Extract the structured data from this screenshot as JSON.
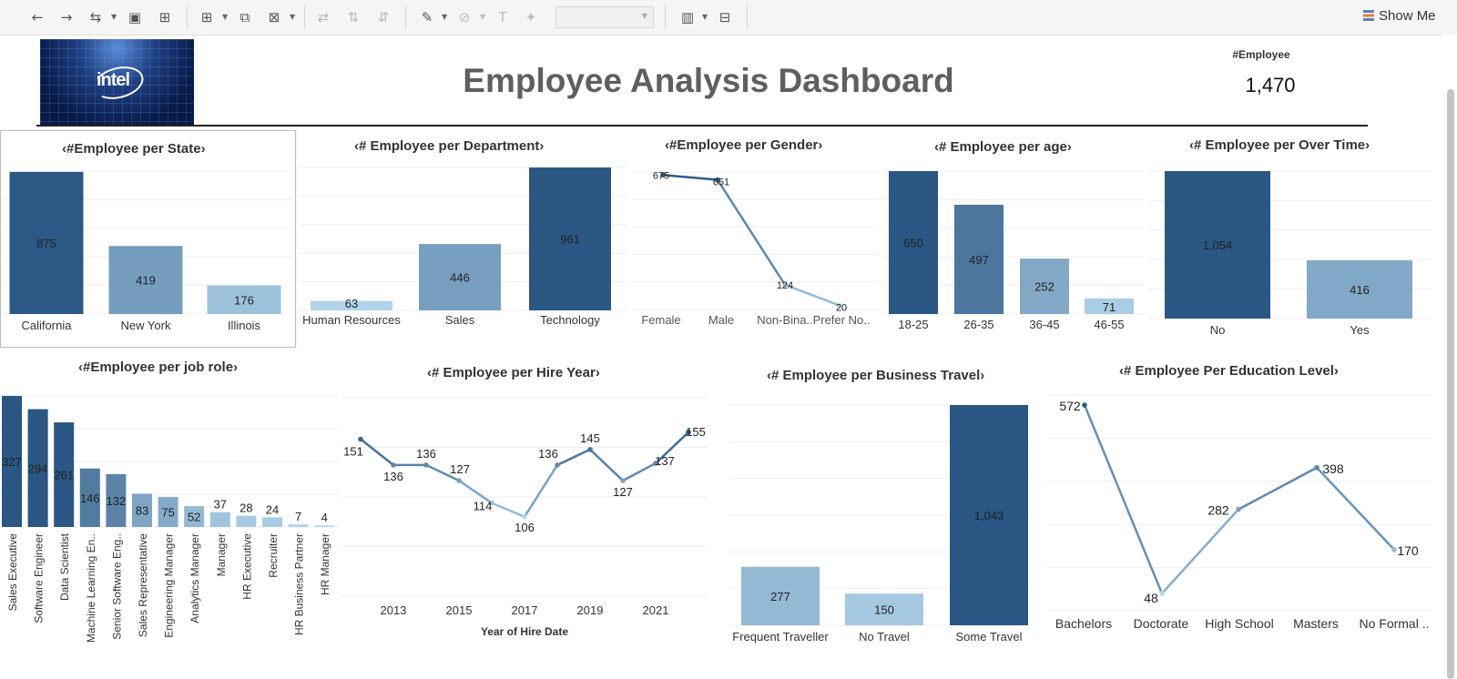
{
  "toolbar": {
    "items": [
      {
        "name": "undo-icon",
        "glyph": "←"
      },
      {
        "name": "redo-icon",
        "glyph": "→"
      },
      {
        "name": "replay-icon",
        "glyph": "⇆"
      },
      {
        "name": "save-icon",
        "glyph": "▣"
      },
      {
        "name": "new-datasource-icon",
        "glyph": "⊞"
      },
      {
        "name": "new-worksheet-icon",
        "glyph": "⊞"
      },
      {
        "name": "duplicate-sheet-icon",
        "glyph": "⧉"
      },
      {
        "name": "clear-sheet-icon",
        "glyph": "⊠"
      },
      {
        "name": "swap-rows-columns-icon",
        "glyph": "⇄"
      },
      {
        "name": "sort-ascending-icon",
        "glyph": "⇅"
      },
      {
        "name": "sort-descending-icon",
        "glyph": "⇵"
      },
      {
        "name": "highlight-icon",
        "glyph": "✎"
      },
      {
        "name": "group-members-icon",
        "glyph": "⊘"
      },
      {
        "name": "show-mark-labels-icon",
        "glyph": "T"
      },
      {
        "name": "fix-axes-icon",
        "glyph": "✦"
      },
      {
        "name": "fit-width-icon",
        "glyph": "▥"
      },
      {
        "name": "presentation-mode-icon",
        "glyph": "⊟"
      }
    ],
    "show_me": "Show Me"
  },
  "header": {
    "logo_text": "intel",
    "title": "Employee Analysis Dashboard",
    "kpi_label": "#Employee",
    "kpi_value": "1,470"
  },
  "panels": {
    "state": {
      "title": "#Employee per State"
    },
    "department": {
      "title": "# Employee per Department"
    },
    "gender": {
      "title": "#Employee per Gender"
    },
    "age": {
      "title": "# Employee per age"
    },
    "overtime": {
      "title": "# Employee per Over Time"
    },
    "jobrole": {
      "title": "#Employee per job role"
    },
    "hireyear": {
      "title": "# Employee per Hire Year"
    },
    "travel": {
      "title": "# Employee per Business Travel"
    },
    "education": {
      "title": "# Employee Per Education Level"
    }
  },
  "colors": {
    "dark": "#2a5783",
    "mid": "#4a78a7",
    "light": "#77a8d0",
    "lighter": "#9cc8e5",
    "lightest": "#b9dcf1"
  },
  "chart_data": [
    {
      "id": "state",
      "type": "bar",
      "categories": [
        "California",
        "New York",
        "Illinois"
      ],
      "values": [
        875,
        419,
        176
      ],
      "labels": [
        "875",
        "419",
        "176"
      ]
    },
    {
      "id": "department",
      "type": "bar",
      "categories": [
        "Human Resources",
        "Sales",
        "Technology"
      ],
      "values": [
        63,
        446,
        961
      ],
      "labels": [
        "63",
        "446",
        "961"
      ]
    },
    {
      "id": "gender",
      "type": "line",
      "categories": [
        "Female",
        "Male",
        "Non-Bina..",
        "Prefer No.."
      ],
      "values": [
        675,
        651,
        124,
        20
      ],
      "labels": [
        "675",
        "651",
        "124",
        "20"
      ]
    },
    {
      "id": "age",
      "type": "bar",
      "categories": [
        "18-25",
        "26-35",
        "36-45",
        "46-55"
      ],
      "values": [
        650,
        497,
        252,
        71
      ],
      "labels": [
        "650",
        "497",
        "252",
        "71"
      ]
    },
    {
      "id": "overtime",
      "type": "bar",
      "categories": [
        "No",
        "Yes"
      ],
      "values": [
        1054,
        416
      ],
      "labels": [
        "1,054",
        "416"
      ]
    },
    {
      "id": "jobrole",
      "type": "bar",
      "categories": [
        "Sales Executive",
        "Software Engineer",
        "Data Scientist",
        "Machine Learning En..",
        "Senior Software Eng..",
        "Sales Representative",
        "Engineering Manager",
        "Analytics Manager",
        "Manager",
        "HR Executive",
        "Recruiter",
        "HR Business Partner",
        "HR Manager"
      ],
      "values": [
        327,
        294,
        261,
        146,
        132,
        83,
        75,
        52,
        37,
        28,
        24,
        7,
        4
      ],
      "labels": [
        "327",
        "294",
        "261",
        "146",
        "132",
        "83",
        "75",
        "52",
        "37",
        "28",
        "24",
        "7",
        "4"
      ]
    },
    {
      "id": "hireyear",
      "type": "line",
      "x": [
        2012,
        2013,
        2014,
        2015,
        2016,
        2017,
        2018,
        2019,
        2020,
        2021,
        2022
      ],
      "values": [
        151,
        136,
        136,
        127,
        114,
        106,
        136,
        145,
        127,
        137,
        155
      ],
      "labels": [
        "151",
        "136",
        "136",
        "127",
        "114",
        "106",
        "136",
        "145",
        "127",
        "137",
        "155"
      ],
      "xticks": [
        "2013",
        "2015",
        "2017",
        "2019",
        "2021"
      ],
      "xlabel": "Year of Hire Date"
    },
    {
      "id": "travel",
      "type": "bar",
      "categories": [
        "Frequent Traveller",
        "No Travel",
        "Some Travel"
      ],
      "values": [
        277,
        150,
        1043
      ],
      "labels": [
        "277",
        "150",
        "1,043"
      ]
    },
    {
      "id": "education",
      "type": "line",
      "categories": [
        "Bachelors",
        "Doctorate",
        "High School",
        "Masters",
        "No Formal .."
      ],
      "values": [
        572,
        48,
        282,
        398,
        170
      ],
      "labels": [
        "572",
        "48",
        "282",
        "398",
        "170"
      ]
    }
  ]
}
